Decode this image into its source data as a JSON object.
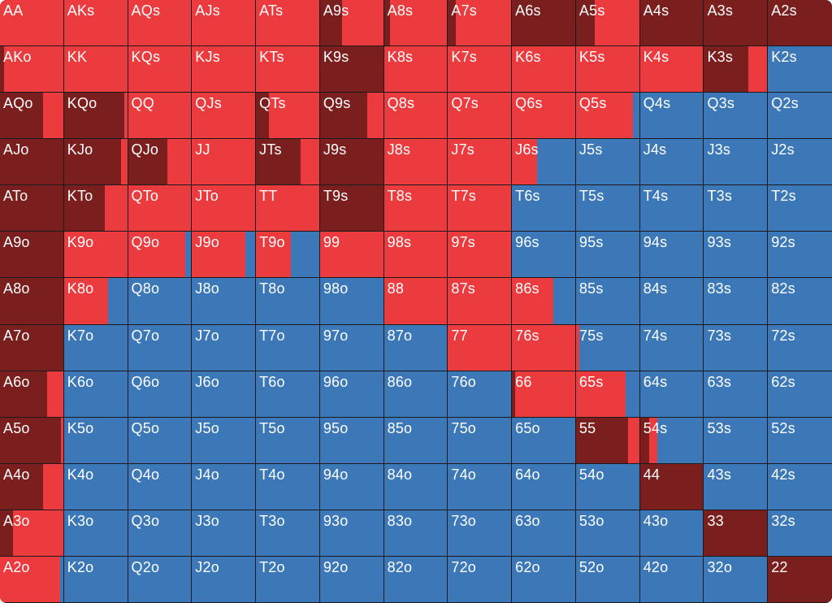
{
  "colors": {
    "raise": "#7a1e1e",
    "call": "#ec3b3e",
    "fold": "#3c78b8"
  },
  "rows": [
    [
      "AA",
      "AKs",
      "AQs",
      "AJs",
      "ATs",
      "A9s",
      "A8s",
      "A7s",
      "A6s",
      "A5s",
      "A4s",
      "A3s",
      "A2s"
    ],
    [
      "AKo",
      "KK",
      "KQs",
      "KJs",
      "KTs",
      "K9s",
      "K8s",
      "K7s",
      "K6s",
      "K5s",
      "K4s",
      "K3s",
      "K2s"
    ],
    [
      "AQo",
      "KQo",
      "QQ",
      "QJs",
      "QTs",
      "Q9s",
      "Q8s",
      "Q7s",
      "Q6s",
      "Q5s",
      "Q4s",
      "Q3s",
      "Q2s"
    ],
    [
      "AJo",
      "KJo",
      "QJo",
      "JJ",
      "JTs",
      "J9s",
      "J8s",
      "J7s",
      "J6s",
      "J5s",
      "J4s",
      "J3s",
      "J2s"
    ],
    [
      "ATo",
      "KTo",
      "QTo",
      "JTo",
      "TT",
      "T9s",
      "T8s",
      "T7s",
      "T6s",
      "T5s",
      "T4s",
      "T3s",
      "T2s"
    ],
    [
      "A9o",
      "K9o",
      "Q9o",
      "J9o",
      "T9o",
      "99",
      "98s",
      "97s",
      "96s",
      "95s",
      "94s",
      "93s",
      "92s"
    ],
    [
      "A8o",
      "K8o",
      "Q8o",
      "J8o",
      "T8o",
      "98o",
      "88",
      "87s",
      "86s",
      "85s",
      "84s",
      "83s",
      "82s"
    ],
    [
      "A7o",
      "K7o",
      "Q7o",
      "J7o",
      "T7o",
      "97o",
      "87o",
      "77",
      "76s",
      "75s",
      "74s",
      "73s",
      "72s"
    ],
    [
      "A6o",
      "K6o",
      "Q6o",
      "J6o",
      "T6o",
      "96o",
      "86o",
      "76o",
      "66",
      "65s",
      "64s",
      "63s",
      "62s"
    ],
    [
      "A5o",
      "K5o",
      "Q5o",
      "J5o",
      "T5o",
      "95o",
      "85o",
      "75o",
      "65o",
      "55",
      "54s",
      "53s",
      "52s"
    ],
    [
      "A4o",
      "K4o",
      "Q4o",
      "J4o",
      "T4o",
      "94o",
      "84o",
      "74o",
      "64o",
      "54o",
      "44",
      "43s",
      "42s"
    ],
    [
      "A3o",
      "K3o",
      "Q3o",
      "J3o",
      "T3o",
      "93o",
      "83o",
      "73o",
      "63o",
      "53o",
      "43o",
      "33",
      "32s"
    ],
    [
      "A2o",
      "K2o",
      "Q2o",
      "J2o",
      "T2o",
      "92o",
      "82o",
      "72o",
      "62o",
      "52o",
      "42o",
      "32o",
      "22"
    ]
  ],
  "frequencies": [
    [
      [
        0,
        1
      ],
      [
        0,
        1
      ],
      [
        0,
        1
      ],
      [
        0,
        1
      ],
      [
        0,
        1
      ],
      [
        0.35,
        0.65
      ],
      [
        0.1,
        0.9
      ],
      [
        0.12,
        0.88
      ],
      [
        1,
        0
      ],
      [
        0.3,
        0.7
      ],
      [
        1,
        0
      ],
      [
        1,
        0
      ],
      [
        1,
        0
      ]
    ],
    [
      [
        0.06,
        0.94
      ],
      [
        0,
        1
      ],
      [
        0,
        1
      ],
      [
        0,
        1
      ],
      [
        0,
        1
      ],
      [
        1,
        0
      ],
      [
        0,
        1
      ],
      [
        0,
        1
      ],
      [
        0,
        1
      ],
      [
        0,
        1
      ],
      [
        0,
        1
      ],
      [
        0.7,
        0.3
      ],
      [
        0,
        0
      ]
    ],
    [
      [
        0.68,
        0.32
      ],
      [
        0.95,
        0.05
      ],
      [
        0,
        1
      ],
      [
        0,
        1
      ],
      [
        0.2,
        0.8
      ],
      [
        0.75,
        0.25
      ],
      [
        0,
        1
      ],
      [
        0,
        1
      ],
      [
        0,
        1
      ],
      [
        0,
        0.9
      ],
      [
        0,
        0
      ],
      [
        0,
        0
      ],
      [
        0,
        0
      ]
    ],
    [
      [
        1,
        0
      ],
      [
        0.9,
        0.1
      ],
      [
        0.62,
        0.38
      ],
      [
        0,
        1
      ],
      [
        0.7,
        0.3
      ],
      [
        1,
        0
      ],
      [
        0,
        1
      ],
      [
        0,
        1
      ],
      [
        0,
        0.4
      ],
      [
        0,
        0
      ],
      [
        0,
        0
      ],
      [
        0,
        0
      ],
      [
        0,
        0
      ]
    ],
    [
      [
        1,
        0
      ],
      [
        0.65,
        0.35
      ],
      [
        0,
        1
      ],
      [
        0,
        1
      ],
      [
        0,
        1
      ],
      [
        1,
        0
      ],
      [
        0,
        1
      ],
      [
        0,
        1
      ],
      [
        0,
        0
      ],
      [
        0,
        0
      ],
      [
        0,
        0
      ],
      [
        0,
        0
      ],
      [
        0,
        0
      ]
    ],
    [
      [
        1,
        0
      ],
      [
        0,
        1
      ],
      [
        0,
        0.9
      ],
      [
        0,
        0.85
      ],
      [
        0,
        0.55
      ],
      [
        0,
        1
      ],
      [
        0,
        1
      ],
      [
        0,
        1
      ],
      [
        0,
        0
      ],
      [
        0,
        0
      ],
      [
        0,
        0
      ],
      [
        0,
        0
      ],
      [
        0,
        0
      ]
    ],
    [
      [
        1,
        0
      ],
      [
        0,
        0.7
      ],
      [
        0,
        0
      ],
      [
        0,
        0
      ],
      [
        0,
        0
      ],
      [
        0,
        0
      ],
      [
        0,
        1
      ],
      [
        0,
        1
      ],
      [
        0,
        0.65
      ],
      [
        0,
        0
      ],
      [
        0,
        0
      ],
      [
        0,
        0
      ],
      [
        0,
        0
      ]
    ],
    [
      [
        1,
        0
      ],
      [
        0,
        0
      ],
      [
        0,
        0
      ],
      [
        0,
        0
      ],
      [
        0,
        0
      ],
      [
        0,
        0
      ],
      [
        0,
        0
      ],
      [
        0,
        1
      ],
      [
        0,
        1
      ],
      [
        0,
        0.05
      ],
      [
        0,
        0
      ],
      [
        0,
        0
      ],
      [
        0,
        0
      ]
    ],
    [
      [
        0.75,
        0.25
      ],
      [
        0,
        0
      ],
      [
        0,
        0
      ],
      [
        0,
        0
      ],
      [
        0,
        0
      ],
      [
        0,
        0
      ],
      [
        0,
        0
      ],
      [
        0,
        0
      ],
      [
        0.05,
        0.95
      ],
      [
        0,
        0.78
      ],
      [
        0,
        0
      ],
      [
        0,
        0
      ],
      [
        0,
        0
      ]
    ],
    [
      [
        0.96,
        0.04
      ],
      [
        0,
        0
      ],
      [
        0,
        0
      ],
      [
        0,
        0
      ],
      [
        0,
        0
      ],
      [
        0,
        0
      ],
      [
        0,
        0
      ],
      [
        0,
        0
      ],
      [
        0,
        0
      ],
      [
        0.82,
        0.18
      ],
      [
        0.15,
        0.12
      ],
      [
        0,
        0
      ],
      [
        0,
        0
      ]
    ],
    [
      [
        0.68,
        0.32
      ],
      [
        0,
        0
      ],
      [
        0,
        0
      ],
      [
        0,
        0
      ],
      [
        0,
        0
      ],
      [
        0,
        0
      ],
      [
        0,
        0
      ],
      [
        0,
        0
      ],
      [
        0,
        0
      ],
      [
        0,
        0
      ],
      [
        1,
        0
      ],
      [
        0,
        0
      ],
      [
        0,
        0
      ]
    ],
    [
      [
        0.2,
        0.8
      ],
      [
        0,
        0
      ],
      [
        0,
        0
      ],
      [
        0,
        0
      ],
      [
        0,
        0
      ],
      [
        0,
        0
      ],
      [
        0,
        0
      ],
      [
        0,
        0
      ],
      [
        0,
        0
      ],
      [
        0,
        0
      ],
      [
        0,
        0
      ],
      [
        1,
        0
      ],
      [
        0,
        0
      ]
    ],
    [
      [
        0,
        0.95
      ],
      [
        0,
        0
      ],
      [
        0,
        0
      ],
      [
        0,
        0
      ],
      [
        0,
        0
      ],
      [
        0,
        0
      ],
      [
        0,
        0
      ],
      [
        0,
        0
      ],
      [
        0,
        0
      ],
      [
        0,
        0
      ],
      [
        0,
        0
      ],
      [
        0,
        0
      ],
      [
        1,
        0
      ]
    ]
  ]
}
